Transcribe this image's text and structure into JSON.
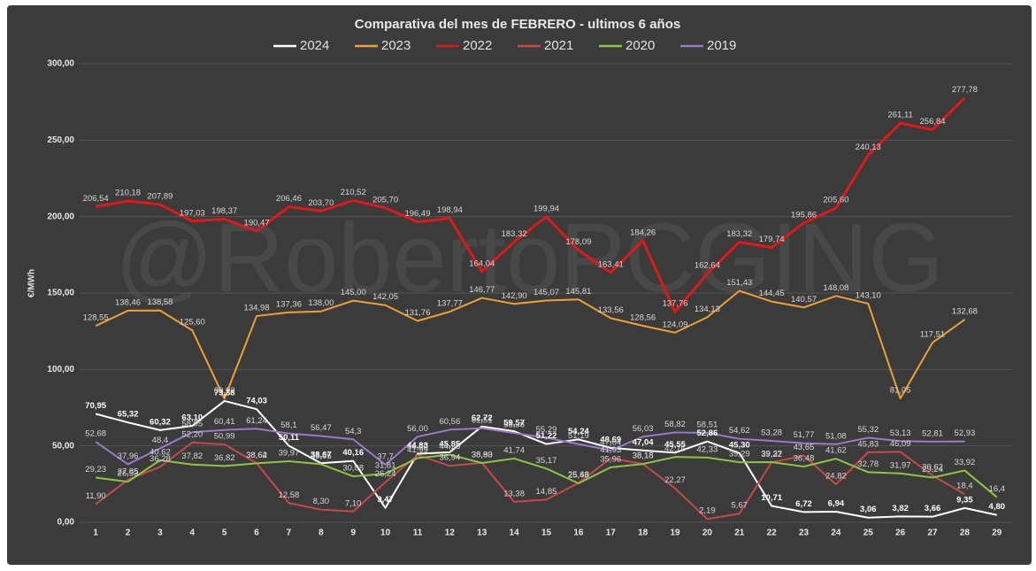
{
  "chart_data": {
    "type": "line",
    "title": "Comparativa  del mes de FEBRERO - ultimos 6 años",
    "watermark": "@RobertoPCGING",
    "y_label": "€/MWh",
    "categories": [
      "1",
      "2",
      "3",
      "4",
      "5",
      "6",
      "7",
      "8",
      "9",
      "10",
      "11",
      "12",
      "13",
      "14",
      "15",
      "16",
      "17",
      "18",
      "19",
      "20",
      "21",
      "22",
      "23",
      "24",
      "25",
      "26",
      "27",
      "28",
      "29"
    ],
    "ylim": [
      0,
      300
    ],
    "yticks": [
      {
        "value": 0,
        "label": "0,00"
      },
      {
        "value": 50,
        "label": "50,00"
      },
      {
        "value": 100,
        "label": "100,00"
      },
      {
        "value": 150,
        "label": "150,00"
      },
      {
        "value": 200,
        "label": "200,00"
      },
      {
        "value": 250,
        "label": "250,00"
      },
      {
        "value": 300,
        "label": "300,00"
      }
    ],
    "legend": "top",
    "series": [
      {
        "name": "2024",
        "color": "#ffffff",
        "values": [
          70.95,
          65.32,
          60.32,
          63.1,
          79.38,
          74.03,
          50.11,
          38.67,
          40.16,
          9.47,
          44.83,
          45.85,
          62.72,
          59.57,
          51.22,
          54.24,
          48.69,
          47.04,
          45.55,
          52.86,
          45.3,
          10.71,
          6.72,
          6.94,
          3.06,
          3.82,
          3.66,
          9.35,
          4.8
        ],
        "value_labels": [
          "70,95",
          "65,32",
          "60,32",
          "63,10",
          "79,38",
          "74,03",
          "50,11",
          "38,67",
          "40,16",
          "9,47",
          "44,83",
          "45,85",
          "62,72",
          "59,57",
          "51,22",
          "54,24",
          "48,69",
          "47,04",
          "45,55",
          "52,86",
          "45,30",
          "10,71",
          "6,72",
          "6,94",
          "3,06",
          "3,82",
          "3,66",
          "9,35",
          "4,80"
        ]
      },
      {
        "name": "2023",
        "color": "#f0a030",
        "values": [
          128.55,
          138.46,
          138.58,
          125.6,
          80.92,
          134.98,
          137.36,
          138.0,
          145.0,
          142.05,
          131.76,
          137.77,
          146.77,
          142.9,
          145.07,
          145.81,
          133.56,
          128.56,
          124.09,
          134.13,
          151.43,
          144.45,
          140.57,
          148.08,
          143.1,
          81.05,
          117.51,
          132.68,
          null
        ],
        "value_labels": [
          "128,55",
          "138,46",
          "138,58",
          "125,60",
          "80,92",
          "134,98",
          "137,36",
          "138,00",
          "145,00",
          "142,05",
          "131,76",
          "137,77",
          "146,77",
          "142,90",
          "145,07",
          "145,81",
          "133,56",
          "128,56",
          "124,09",
          "134,13",
          "151,43",
          "144,45",
          "140,57",
          "148,08",
          "143,10",
          "81,05",
          "117,51",
          "132,68",
          null
        ]
      },
      {
        "name": "2022",
        "color": "#e01818",
        "values": [
          206.54,
          210.18,
          207.89,
          197.03,
          198.37,
          190.47,
          206.46,
          203.7,
          210.52,
          205.7,
          196.49,
          198.94,
          164.04,
          183.32,
          199.94,
          178.09,
          163.41,
          184.26,
          137.76,
          162.64,
          183.32,
          179.74,
          195.86,
          205.6,
          240.13,
          261.11,
          256.84,
          277.78,
          null
        ],
        "value_labels": [
          "206,54",
          "210,18",
          "207,89",
          "197,03",
          "198,37",
          "190,47",
          "206,46",
          "203,70",
          "210,52",
          "205,70",
          "196,49",
          "198,94",
          "164,04",
          "183,32",
          "199,94",
          "178,09",
          "163,41",
          "184,26",
          "137,76",
          "162,64",
          "183,32",
          "179,74",
          "195,86",
          "205,60",
          "240,13",
          "261,11",
          "256,84",
          "277,78",
          null
        ]
      },
      {
        "name": "2021",
        "color": "#c84848",
        "values": [
          11.9,
          27.85,
          36.28,
          52.2,
          50.99,
          38.64,
          12.58,
          8.3,
          7.1,
          26.24,
          44.0,
          36.94,
          38.93,
          13.38,
          14.85,
          25.68,
          41.93,
          38.18,
          22.27,
          2.19,
          5.67,
          39.22,
          43.65,
          24.82,
          45.83,
          46.09,
          30.62,
          18.4,
          null
        ],
        "value_labels": [
          "11,90",
          "27,85",
          "36,28",
          "52,20",
          "50,99",
          "38,64",
          "12,58",
          "8,30",
          "7,10",
          "26,24",
          "44,00",
          "36,94",
          "38,93",
          "13,38",
          "14,85",
          "25,68",
          "41,93",
          "38,18",
          "22,27",
          "2,19",
          "5,67",
          "39,22",
          "43,65",
          "24,82",
          "45,83",
          "46,09",
          "30,62",
          "18,4",
          null
        ]
      },
      {
        "name": "2020",
        "color": "#8cc63e",
        "values": [
          29.23,
          26.53,
          40.62,
          37.82,
          36.82,
          38.62,
          39.97,
          38.05,
          30.08,
          31.81,
          41.99,
          44.26,
          38.8,
          41.74,
          35.17,
          25.48,
          35.96,
          38.18,
          42.76,
          42.33,
          39.29,
          39.37,
          36.48,
          41.62,
          32.78,
          31.97,
          29.24,
          33.92,
          16.4
        ],
        "value_labels": [
          "29,23",
          "26,53",
          "40,62",
          "37,82",
          "36,82",
          "38,62",
          "39,97",
          "38,05",
          "30,08",
          "31,81",
          "41,99",
          "44,26",
          "38,80",
          "41,74",
          "35,17",
          "25,48",
          "35,96",
          "38,18",
          "42,76",
          "42,33",
          "39,29",
          "39,37",
          "36,48",
          "41,62",
          "32,78",
          "31,97",
          "29,24",
          "33,92",
          "16,4"
        ]
      },
      {
        "name": "2019",
        "color": "#9b78c8",
        "values": [
          52.68,
          37.96,
          48.4,
          58.95,
          60.41,
          61.24,
          58.1,
          56.47,
          54.3,
          37.7,
          56.0,
          60.56,
          61.51,
          58.38,
          55.29,
          51.19,
          47.04,
          56.03,
          58.82,
          58.51,
          54.62,
          53.28,
          51.77,
          51.08,
          55.32,
          53.13,
          52.81,
          52.93,
          null
        ],
        "value_labels": [
          "52,68",
          "37,96",
          "48,4",
          "58,95",
          "60,41",
          "61,24",
          "58,1",
          "56,47",
          "54,3",
          "37,7",
          "56,00",
          "60,56",
          "61,51",
          "58,38",
          "55,29",
          "51,19",
          "47,04",
          "56,03",
          "58,82",
          "58,51",
          "54,62",
          "53,28",
          "51,77",
          "51,08",
          "55,32",
          "53,13",
          "52,81",
          "52,93",
          null
        ]
      }
    ]
  }
}
